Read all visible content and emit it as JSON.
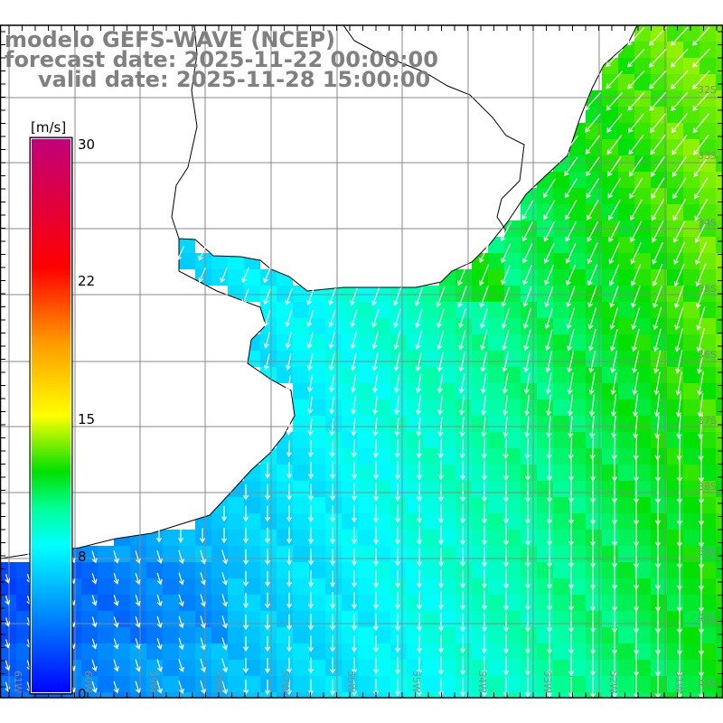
{
  "title": {
    "model": "modelo GEFS-WAVE (NCEP)",
    "forecast": "forecast date: 2025-11-22 00:00:00",
    "valid": "valid date: 2025-11-28 15:00:00"
  },
  "colorbar": {
    "unit": "[m/s]",
    "ticks": [
      "30",
      "22",
      "15",
      "8",
      "0"
    ],
    "stops": [
      {
        "v": 0,
        "c": "#0000ff"
      },
      {
        "v": 4,
        "c": "#0080ff"
      },
      {
        "v": 8,
        "c": "#00ffff"
      },
      {
        "v": 10,
        "c": "#00ff99"
      },
      {
        "v": 12,
        "c": "#00e000"
      },
      {
        "v": 15,
        "c": "#ffff00"
      },
      {
        "v": 19,
        "c": "#ff9900"
      },
      {
        "v": 23,
        "c": "#ff0000"
      },
      {
        "v": 30,
        "c": "#c0007a"
      }
    ]
  },
  "axes": {
    "lon_labels": [
      "61W",
      "60W",
      "59W",
      "58W",
      "57W",
      "56W",
      "55W",
      "54W",
      "53W",
      "52W",
      "51W"
    ],
    "lat_labels": [
      "32S",
      "33S",
      "34S",
      "35S",
      "36S",
      "37S",
      "38S",
      "39S",
      "40S",
      "41S"
    ]
  },
  "colors": {
    "grid": "#888888",
    "land": "#ffffff",
    "coast": "#000000",
    "arrow": "#ffffff"
  }
}
